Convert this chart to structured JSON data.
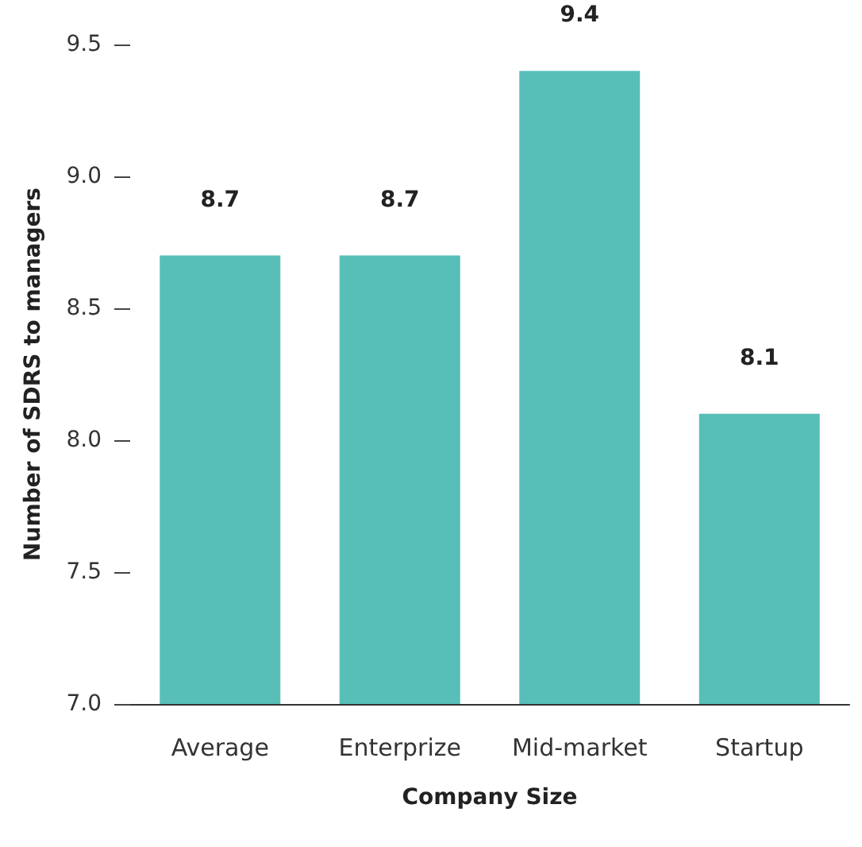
{
  "chart_data": {
    "type": "bar",
    "categories": [
      "Average",
      "Enterprize",
      "Mid-market",
      "Startup"
    ],
    "values": [
      8.7,
      8.7,
      9.4,
      8.1
    ],
    "color": "#58bfb8",
    "xlabel": "Company Size",
    "ylabel": "Number of SDRS to managers",
    "ylim": [
      7.0,
      9.5
    ],
    "yticks": [
      {
        "value": 7.0,
        "label": "7.0"
      },
      {
        "value": 7.5,
        "label": "7.5"
      },
      {
        "value": 8.0,
        "label": "8.0"
      },
      {
        "value": 8.5,
        "label": "8.5"
      },
      {
        "value": 9.0,
        "label": "9.0"
      },
      {
        "value": 9.5,
        "label": "9.5"
      }
    ],
    "data_labels": true
  }
}
